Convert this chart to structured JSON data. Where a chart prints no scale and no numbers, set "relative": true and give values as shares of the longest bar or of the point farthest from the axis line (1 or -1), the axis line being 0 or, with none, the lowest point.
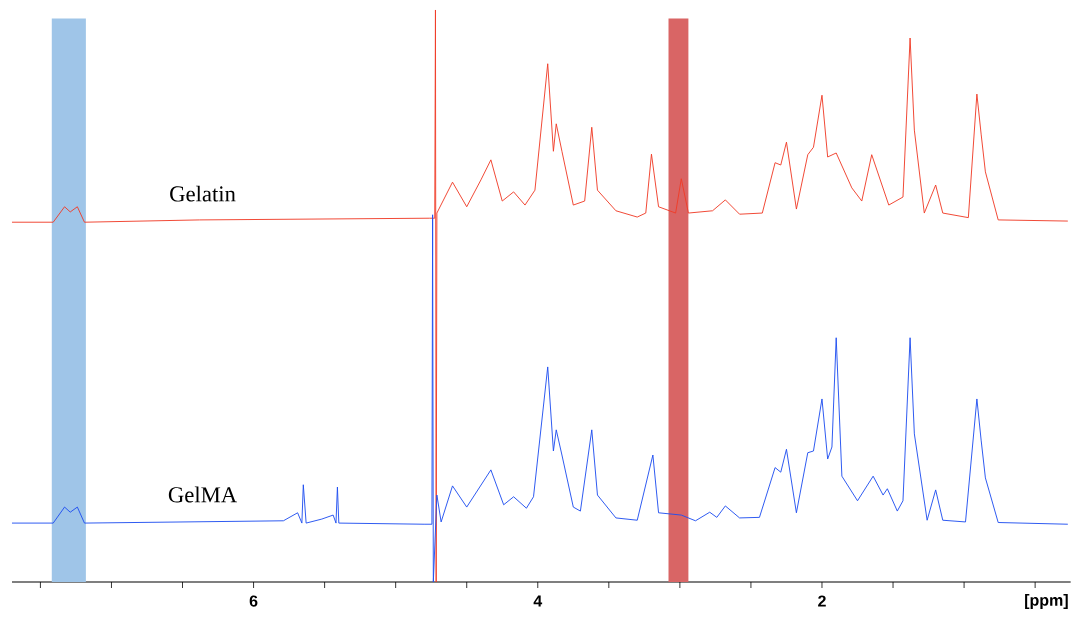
{
  "chart_data": {
    "type": "line",
    "relative": true,
    "xlabel": "[ppm]",
    "xlim": [
      7.7,
      0.25
    ],
    "xticks": [
      {
        "value": 7.5,
        "label": null
      },
      {
        "value": 7,
        "label": null
      },
      {
        "value": 6.5,
        "label": null
      },
      6,
      {
        "value": 5.5,
        "label": null
      },
      {
        "value": 5,
        "label": null
      },
      {
        "value": 4.5,
        "label": null
      },
      4,
      {
        "value": 3.5,
        "label": null
      },
      {
        "value": 3,
        "label": null
      },
      {
        "value": 2.5,
        "label": null
      },
      2,
      {
        "value": 1.5,
        "label": null
      },
      {
        "value": 1,
        "label": null
      },
      {
        "value": 0.5,
        "label": null
      }
    ],
    "bands": [
      {
        "axis": "x",
        "from": 7.42,
        "to": 7.18,
        "color": "#9fc5e8"
      },
      {
        "axis": "x",
        "from": 3.08,
        "to": 2.94,
        "color": "#d96565"
      }
    ],
    "series": [
      {
        "name": "Gelatin",
        "color": "#f03c28",
        "x": [
          7.7,
          7.41,
          7.33,
          7.29,
          7.24,
          7.19,
          6.38,
          4.76,
          4.725,
          4.72,
          4.715,
          4.71,
          4.6,
          4.5,
          4.4,
          4.33,
          4.25,
          4.17,
          4.09,
          4.02,
          3.93,
          3.89,
          3.87,
          3.83,
          3.75,
          3.67,
          3.62,
          3.58,
          3.45,
          3.3,
          3.24,
          3.2,
          3.15,
          3.03,
          2.99,
          2.94,
          2.77,
          2.68,
          2.58,
          2.42,
          2.33,
          2.29,
          2.25,
          2.18,
          2.1,
          2.06,
          2.0,
          1.96,
          1.9,
          1.79,
          1.72,
          1.65,
          1.53,
          1.43,
          1.38,
          1.35,
          1.28,
          1.2,
          1.15,
          0.97,
          0.91,
          0.88,
          0.85,
          0.76,
          0.27
        ],
        "values": [
          0.629,
          0.629,
          0.656,
          0.647,
          0.656,
          0.629,
          0.633,
          0.636,
          0.636,
          1.0,
          0.0,
          0.645,
          0.699,
          0.656,
          0.703,
          0.738,
          0.666,
          0.682,
          0.659,
          0.685,
          0.906,
          0.753,
          0.801,
          0.753,
          0.659,
          0.666,
          0.795,
          0.685,
          0.649,
          0.638,
          0.645,
          0.748,
          0.656,
          0.645,
          0.705,
          0.645,
          0.649,
          0.668,
          0.643,
          0.645,
          0.733,
          0.729,
          0.769,
          0.652,
          0.747,
          0.76,
          0.851,
          0.743,
          0.75,
          0.689,
          0.666,
          0.747,
          0.659,
          0.673,
          0.951,
          0.79,
          0.645,
          0.694,
          0.645,
          0.637,
          0.853,
          0.783,
          0.717,
          0.633,
          0.631
        ]
      },
      {
        "name": "GelMA",
        "color": "#1f4ff0",
        "x": [
          7.7,
          7.41,
          7.33,
          7.29,
          7.24,
          7.19,
          5.79,
          5.69,
          5.66,
          5.65,
          5.63,
          5.52,
          5.44,
          5.42,
          5.41,
          5.4,
          4.8,
          4.745,
          4.74,
          4.735,
          4.71,
          4.68,
          4.6,
          4.5,
          4.33,
          4.24,
          4.17,
          4.08,
          4.03,
          3.93,
          3.89,
          3.87,
          3.83,
          3.75,
          3.7,
          3.62,
          3.58,
          3.45,
          3.3,
          3.19,
          3.15,
          2.99,
          2.89,
          2.79,
          2.74,
          2.68,
          2.58,
          2.44,
          2.33,
          2.29,
          2.25,
          2.18,
          2.1,
          2.06,
          2.0,
          1.96,
          1.93,
          1.9,
          1.86,
          1.75,
          1.64,
          1.57,
          1.54,
          1.47,
          1.43,
          1.38,
          1.35,
          1.26,
          1.2,
          1.15,
          0.99,
          0.91,
          0.88,
          0.85,
          0.76,
          0.27
        ],
        "values": [
          0.103,
          0.103,
          0.131,
          0.122,
          0.131,
          0.103,
          0.107,
          0.121,
          0.103,
          0.17,
          0.103,
          0.11,
          0.117,
          0.103,
          0.166,
          0.103,
          0.101,
          0.101,
          0.642,
          0.0,
          0.152,
          0.105,
          0.168,
          0.131,
          0.196,
          0.135,
          0.149,
          0.129,
          0.149,
          0.376,
          0.229,
          0.266,
          0.222,
          0.131,
          0.124,
          0.266,
          0.152,
          0.112,
          0.108,
          0.222,
          0.121,
          0.117,
          0.107,
          0.122,
          0.113,
          0.133,
          0.112,
          0.113,
          0.2,
          0.192,
          0.232,
          0.121,
          0.226,
          0.229,
          0.32,
          0.215,
          0.236,
          0.427,
          0.185,
          0.142,
          0.185,
          0.152,
          0.163,
          0.124,
          0.142,
          0.427,
          0.259,
          0.108,
          0.161,
          0.108,
          0.105,
          0.32,
          0.248,
          0.182,
          0.104,
          0.101
        ]
      }
    ]
  }
}
